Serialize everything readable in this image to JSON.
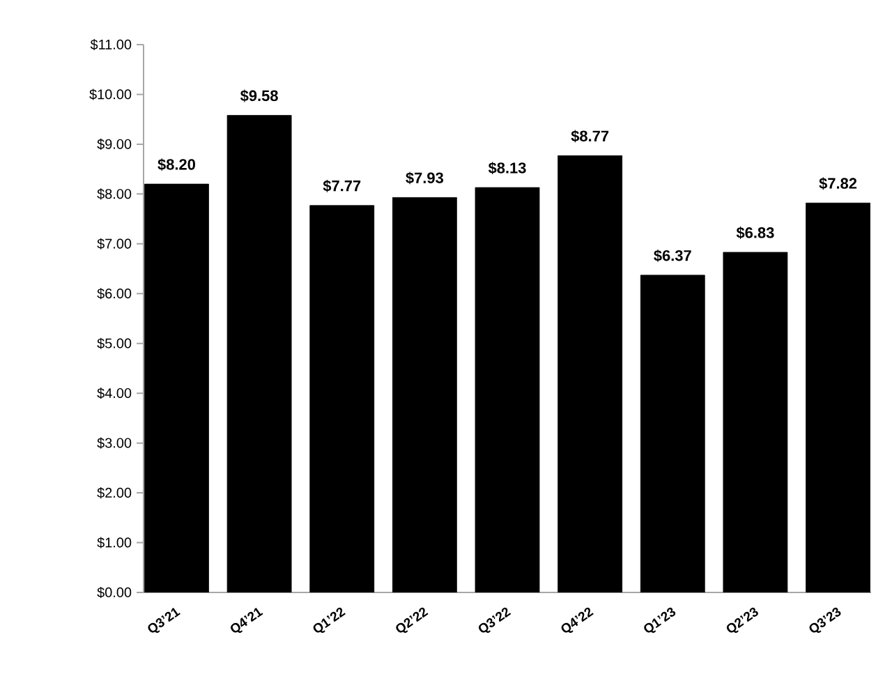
{
  "chart_data": {
    "type": "bar",
    "categories": [
      "Q3’21",
      "Q4’21",
      "Q1’22",
      "Q2’22",
      "Q3’22",
      "Q4’22",
      "Q1’23",
      "Q2’23",
      "Q3’23"
    ],
    "values": [
      8.2,
      9.58,
      7.77,
      7.93,
      8.13,
      8.77,
      6.37,
      6.83,
      7.82
    ],
    "value_labels": [
      "$8.20",
      "$9.58",
      "$7.77",
      "$7.93",
      "$8.13",
      "$8.77",
      "$6.37",
      "$6.83",
      "$7.82"
    ],
    "color": "#000000",
    "ylim": [
      0,
      11
    ],
    "yticks": [
      {
        "value": 0,
        "label": "$0.00"
      },
      {
        "value": 1,
        "label": "$1.00"
      },
      {
        "value": 2,
        "label": "$2.00"
      },
      {
        "value": 3,
        "label": "$3.00"
      },
      {
        "value": 4,
        "label": "$4.00"
      },
      {
        "value": 5,
        "label": "$5.00"
      },
      {
        "value": 6,
        "label": "$6.00"
      },
      {
        "value": 7,
        "label": "$7.00"
      },
      {
        "value": 8,
        "label": "$8.00"
      },
      {
        "value": 9,
        "label": "$9.00"
      },
      {
        "value": 10,
        "label": "$10.00"
      },
      {
        "value": 11,
        "label": "$11.00"
      }
    ],
    "grid": false
  }
}
